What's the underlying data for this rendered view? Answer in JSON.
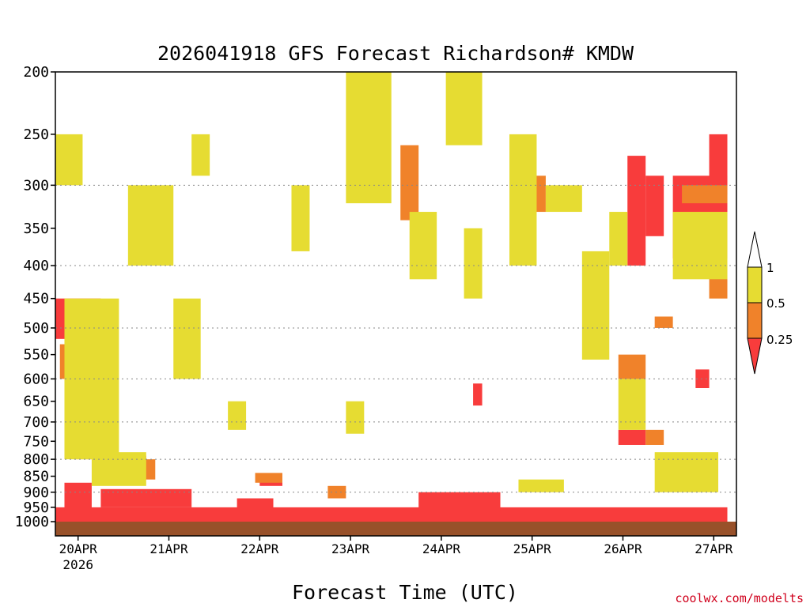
{
  "chart_data": {
    "type": "heatmap",
    "title": "2026041918 GFS Forecast Richardson# KMDW",
    "xlabel": "Forecast Time (UTC)",
    "credit": "coolwx.com/modelts",
    "y_axis": {
      "scale": "log",
      "inverted": true,
      "range": [
        1000,
        200
      ],
      "ticks": [
        "200",
        "250",
        "300",
        "350",
        "400",
        "450",
        "500",
        "550",
        "600",
        "650",
        "700",
        "750",
        "800",
        "850",
        "900",
        "950",
        "1000"
      ],
      "dotted_gridlines": [
        300,
        400,
        500,
        600,
        700,
        800,
        900
      ]
    },
    "x_axis": {
      "range": [
        "2026-04-19 18Z",
        "2026-04-27 06Z"
      ],
      "ticks": [
        {
          "label": "20APR",
          "sub": "2026"
        },
        {
          "label": "21APR",
          "sub": ""
        },
        {
          "label": "22APR",
          "sub": ""
        },
        {
          "label": "23APR",
          "sub": ""
        },
        {
          "label": "24APR",
          "sub": ""
        },
        {
          "label": "25APR",
          "sub": ""
        },
        {
          "label": "26APR",
          "sub": ""
        },
        {
          "label": "27APR",
          "sub": ""
        }
      ]
    },
    "legend": {
      "placement": "right",
      "levels": [
        "1",
        "0.5",
        "0.25"
      ],
      "colors": {
        "lt_0.25": "#f83c3c",
        "0.25_0.5": "#f0822a",
        "0.5_1": "#e6dc32",
        "gt_1": "#ffffff",
        "ground": "#98512a"
      }
    },
    "regions": [
      {
        "bin": "lt_0.25",
        "x": [
          0.0,
          7.4
        ],
        "p": [
          1000,
          950
        ]
      },
      {
        "bin": "lt_0.25",
        "x": [
          0.0,
          0.5
        ],
        "p": [
          520,
          450
        ]
      },
      {
        "bin": "lt_0.25",
        "x": [
          0.1,
          0.4
        ],
        "p": [
          960,
          870
        ]
      },
      {
        "bin": "lt_0.25",
        "x": [
          0.5,
          1.5
        ],
        "p": [
          950,
          890
        ]
      },
      {
        "bin": "lt_0.25",
        "x": [
          0.5,
          1.0
        ],
        "p": [
          850,
          790
        ]
      },
      {
        "bin": "lt_0.25",
        "x": [
          2.0,
          2.4
        ],
        "p": [
          970,
          920
        ]
      },
      {
        "bin": "lt_0.25",
        "x": [
          4.0,
          4.9
        ],
        "p": [
          960,
          900
        ]
      },
      {
        "bin": "lt_0.25",
        "x": [
          2.25,
          2.5
        ],
        "p": [
          880,
          850
        ]
      },
      {
        "bin": "lt_0.25",
        "x": [
          6.5,
          6.7
        ],
        "p": [
          290,
          360
        ]
      },
      {
        "bin": "lt_0.25",
        "x": [
          6.8,
          7.4
        ],
        "p": [
          290,
          390
        ]
      },
      {
        "bin": "lt_0.25",
        "x": [
          6.3,
          6.5
        ],
        "p": [
          270,
          400
        ]
      },
      {
        "bin": "lt_0.25",
        "x": [
          6.2,
          6.5
        ],
        "p": [
          720,
          760
        ]
      },
      {
        "bin": "lt_0.25",
        "x": [
          7.2,
          7.4
        ],
        "p": [
          250,
          310
        ]
      },
      {
        "bin": "lt_0.25",
        "x": [
          7.05,
          7.2
        ],
        "p": [
          580,
          620
        ]
      },
      {
        "bin": "lt_0.25",
        "x": [
          4.6,
          4.7
        ],
        "p": [
          610,
          660
        ]
      },
      {
        "bin": "0.25_0.5",
        "x": [
          0.05,
          0.4
        ],
        "p": [
          600,
          530
        ]
      },
      {
        "bin": "0.25_0.5",
        "x": [
          0.2,
          0.6
        ],
        "p": [
          800,
          700
        ]
      },
      {
        "bin": "0.25_0.5",
        "x": [
          0.9,
          1.1
        ],
        "p": [
          860,
          800
        ]
      },
      {
        "bin": "0.25_0.5",
        "x": [
          2.2,
          2.5
        ],
        "p": [
          870,
          840
        ]
      },
      {
        "bin": "0.25_0.5",
        "x": [
          3.0,
          3.2
        ],
        "p": [
          920,
          880
        ]
      },
      {
        "bin": "0.25_0.5",
        "x": [
          6.2,
          6.5
        ],
        "p": [
          600,
          550
        ]
      },
      {
        "bin": "0.25_0.5",
        "x": [
          6.5,
          6.7
        ],
        "p": [
          760,
          720
        ]
      },
      {
        "bin": "0.25_0.5",
        "x": [
          6.6,
          6.8
        ],
        "p": [
          500,
          480
        ]
      },
      {
        "bin": "0.25_0.5",
        "x": [
          7.2,
          7.4
        ],
        "p": [
          400,
          450
        ]
      },
      {
        "bin": "0.25_0.5",
        "x": [
          6.9,
          7.4
        ],
        "p": [
          300,
          320
        ]
      },
      {
        "bin": "0.25_0.5",
        "x": [
          5.2,
          5.4
        ],
        "p": [
          290,
          330
        ]
      },
      {
        "bin": "0.25_0.5",
        "x": [
          3.8,
          4.0
        ],
        "p": [
          260,
          340
        ]
      },
      {
        "bin": "0.5_1",
        "x": [
          0.1,
          0.7
        ],
        "p": [
          800,
          450
        ]
      },
      {
        "bin": "0.5_1",
        "x": [
          0.4,
          1.0
        ],
        "p": [
          880,
          780
        ]
      },
      {
        "bin": "0.5_1",
        "x": [
          1.3,
          1.6
        ],
        "p": [
          600,
          450
        ]
      },
      {
        "bin": "0.5_1",
        "x": [
          0.8,
          1.3
        ],
        "p": [
          400,
          300
        ]
      },
      {
        "bin": "0.5_1",
        "x": [
          3.2,
          3.4
        ],
        "p": [
          650,
          730
        ]
      },
      {
        "bin": "0.5_1",
        "x": [
          1.9,
          2.1
        ],
        "p": [
          650,
          720
        ]
      },
      {
        "bin": "0.5_1",
        "x": [
          3.2,
          3.7
        ],
        "p": [
          200,
          320
        ]
      },
      {
        "bin": "0.5_1",
        "x": [
          4.3,
          4.7
        ],
        "p": [
          200,
          260
        ]
      },
      {
        "bin": "0.5_1",
        "x": [
          5.0,
          5.3
        ],
        "p": [
          250,
          400
        ]
      },
      {
        "bin": "0.5_1",
        "x": [
          5.4,
          5.8
        ],
        "p": [
          300,
          330
        ]
      },
      {
        "bin": "0.5_1",
        "x": [
          5.8,
          6.1
        ],
        "p": [
          380,
          560
        ]
      },
      {
        "bin": "0.5_1",
        "x": [
          6.1,
          6.3
        ],
        "p": [
          330,
          400
        ]
      },
      {
        "bin": "0.5_1",
        "x": [
          6.8,
          7.4
        ],
        "p": [
          330,
          420
        ]
      },
      {
        "bin": "0.5_1",
        "x": [
          6.2,
          6.5
        ],
        "p": [
          600,
          720
        ]
      },
      {
        "bin": "0.5_1",
        "x": [
          6.6,
          7.3
        ],
        "p": [
          780,
          900
        ]
      },
      {
        "bin": "0.5_1",
        "x": [
          5.1,
          5.6
        ],
        "p": [
          860,
          900
        ]
      },
      {
        "bin": "0.5_1",
        "x": [
          0.0,
          0.3
        ],
        "p": [
          250,
          300
        ]
      },
      {
        "bin": "0.5_1",
        "x": [
          1.5,
          1.7
        ],
        "p": [
          250,
          290
        ]
      },
      {
        "bin": "0.5_1",
        "x": [
          2.6,
          2.8
        ],
        "p": [
          300,
          380
        ]
      },
      {
        "bin": "0.5_1",
        "x": [
          3.9,
          4.2
        ],
        "p": [
          330,
          420
        ]
      },
      {
        "bin": "0.5_1",
        "x": [
          4.5,
          4.7
        ],
        "p": [
          350,
          450
        ]
      }
    ]
  }
}
